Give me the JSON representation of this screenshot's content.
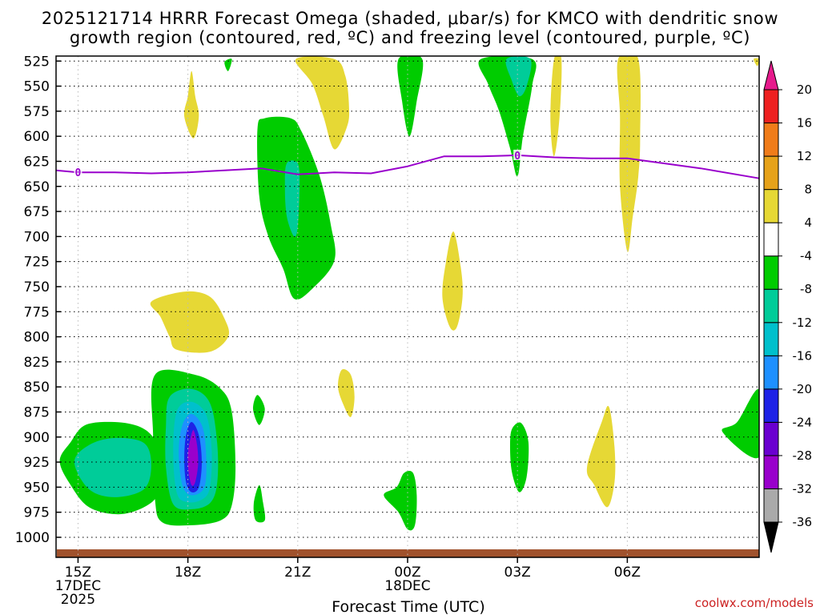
{
  "chart_data": {
    "type": "contour-time-height",
    "title_line1": "2025121714 HRRR Forecast Omega (shaded, μbar/s) for KMCO with dendritic snow",
    "title_line2": "growth region (contoured, red, ºC) and freezing level (contoured, purple, ºC)",
    "xlabel": "Forecast Time (UTC)",
    "credit": "coolwx.com/models",
    "x_range_hours": [
      14.4,
      33.6
    ],
    "y_range_hpa": [
      1020,
      520
    ],
    "y_ticks": [
      525,
      550,
      575,
      600,
      625,
      650,
      675,
      700,
      725,
      750,
      775,
      800,
      825,
      850,
      875,
      900,
      925,
      950,
      975,
      1000
    ],
    "x_ticks": [
      {
        "hour": 15,
        "label": "15Z",
        "sub1": "17DEC",
        "sub2": "2025"
      },
      {
        "hour": 18,
        "label": "18Z",
        "sub1": "",
        "sub2": ""
      },
      {
        "hour": 21,
        "label": "21Z",
        "sub1": "",
        "sub2": ""
      },
      {
        "hour": 24,
        "label": "00Z",
        "sub1": "18DEC",
        "sub2": ""
      },
      {
        "hour": 27,
        "label": "03Z",
        "sub1": "",
        "sub2": ""
      },
      {
        "hour": 30,
        "label": "06Z",
        "sub1": "",
        "sub2": ""
      }
    ],
    "colorbar": {
      "levels": [
        -36,
        -32,
        -28,
        -24,
        -20,
        -16,
        -12,
        -8,
        -4,
        4,
        8,
        12,
        16,
        20
      ],
      "colors": [
        "#aaaaaa",
        "#9900cc",
        "#6a00d0",
        "#1e22e6",
        "#1e90ff",
        "#00c0cc",
        "#00cc99",
        "#00cc00",
        "#ffffff",
        "#e6d835",
        "#e6a21a",
        "#f07c1a",
        "#ee2020",
        "#e6187a"
      ],
      "under_color": "#000000",
      "over_color": "#e61a8c"
    },
    "freezing_level": {
      "label": "0",
      "points": [
        {
          "hour": 14.4,
          "hpa": 634
        },
        {
          "hour": 15,
          "hpa": 636
        },
        {
          "hour": 16,
          "hpa": 636
        },
        {
          "hour": 17,
          "hpa": 637
        },
        {
          "hour": 18,
          "hpa": 636
        },
        {
          "hour": 19,
          "hpa": 634
        },
        {
          "hour": 20,
          "hpa": 632
        },
        {
          "hour": 21,
          "hpa": 638
        },
        {
          "hour": 22,
          "hpa": 636
        },
        {
          "hour": 23,
          "hpa": 637
        },
        {
          "hour": 24,
          "hpa": 630
        },
        {
          "hour": 25,
          "hpa": 620
        },
        {
          "hour": 26,
          "hpa": 620
        },
        {
          "hour": 27,
          "hpa": 619
        },
        {
          "hour": 28,
          "hpa": 621
        },
        {
          "hour": 29,
          "hpa": 622
        },
        {
          "hour": 30,
          "hpa": 622
        },
        {
          "hour": 31,
          "hpa": 627
        },
        {
          "hour": 32,
          "hpa": 632
        },
        {
          "hour": 33.6,
          "hpa": 642
        }
      ],
      "label_hours": [
        15,
        27
      ]
    },
    "omega_regions": [
      {
        "name": "sink-a-15z",
        "color": "#00cc00",
        "points": [
          [
            14.5,
            924
          ],
          [
            14.8,
            905
          ],
          [
            15.2,
            888
          ],
          [
            16,
            885
          ],
          [
            16.7,
            890
          ],
          [
            17.1,
            903
          ],
          [
            17.3,
            927
          ],
          [
            17.2,
            956
          ],
          [
            16.8,
            970
          ],
          [
            16.1,
            977
          ],
          [
            15.3,
            970
          ],
          [
            14.8,
            948
          ]
        ]
      },
      {
        "name": "sink-a-15z-inner",
        "color": "#00cc99",
        "points": [
          [
            14.9,
            925
          ],
          [
            15.3,
            908
          ],
          [
            16,
            901
          ],
          [
            16.8,
            906
          ],
          [
            17.0,
            928
          ],
          [
            16.8,
            952
          ],
          [
            16,
            960
          ],
          [
            15.3,
            952
          ]
        ]
      },
      {
        "name": "sink-b-18z",
        "color": "#00cc00",
        "points": [
          [
            17.1,
            838
          ],
          [
            18.2,
            838
          ],
          [
            18.9,
            852
          ],
          [
            19.2,
            875
          ],
          [
            19.3,
            930
          ],
          [
            19.2,
            968
          ],
          [
            18.9,
            983
          ],
          [
            18.1,
            988
          ],
          [
            17.3,
            985
          ],
          [
            17.1,
            962
          ],
          [
            17.05,
            900
          ]
        ]
      },
      {
        "name": "sink-b-18z-l2",
        "color": "#00cc99",
        "points": [
          [
            17.5,
            860
          ],
          [
            18.1,
            852
          ],
          [
            18.6,
            866
          ],
          [
            18.8,
            906
          ],
          [
            18.8,
            946
          ],
          [
            18.6,
            966
          ],
          [
            18.1,
            972
          ],
          [
            17.6,
            967
          ],
          [
            17.4,
            930
          ],
          [
            17.4,
            890
          ]
        ]
      },
      {
        "name": "sink-b-18z-l3",
        "color": "#00c0cc",
        "points": [
          [
            17.7,
            874
          ],
          [
            18.1,
            865
          ],
          [
            18.5,
            878
          ],
          [
            18.65,
            913
          ],
          [
            18.6,
            950
          ],
          [
            18.4,
            962
          ],
          [
            18.0,
            965
          ],
          [
            17.7,
            956
          ],
          [
            17.6,
            915
          ]
        ]
      },
      {
        "name": "sink-b-18z-l4",
        "color": "#1e90ff",
        "points": [
          [
            17.85,
            888
          ],
          [
            18.1,
            877
          ],
          [
            18.4,
            890
          ],
          [
            18.5,
            920
          ],
          [
            18.45,
            950
          ],
          [
            18.1,
            958
          ],
          [
            17.85,
            948
          ],
          [
            17.75,
            915
          ]
        ]
      },
      {
        "name": "sink-b-18z-l5",
        "color": "#1e22e6",
        "points": [
          [
            17.95,
            898
          ],
          [
            18.1,
            885
          ],
          [
            18.3,
            898
          ],
          [
            18.38,
            925
          ],
          [
            18.3,
            950
          ],
          [
            18.1,
            955
          ],
          [
            17.95,
            945
          ],
          [
            17.9,
            922
          ]
        ]
      },
      {
        "name": "sink-b-18z-core",
        "color": "#9900cc",
        "points": [
          [
            18.05,
            905
          ],
          [
            18.15,
            893
          ],
          [
            18.25,
            908
          ],
          [
            18.28,
            927
          ],
          [
            18.2,
            945
          ],
          [
            18.1,
            948
          ],
          [
            18.02,
            935
          ],
          [
            18.0,
            918
          ]
        ]
      },
      {
        "name": "sink-c-20z",
        "color": "#00cc00",
        "points": [
          [
            19.9,
            593
          ],
          [
            20.1,
            582
          ],
          [
            20.8,
            582
          ],
          [
            21.1,
            595
          ],
          [
            21.6,
            640
          ],
          [
            21.9,
            688
          ],
          [
            22.0,
            724
          ],
          [
            21.4,
            752
          ],
          [
            20.9,
            762
          ],
          [
            20.6,
            732
          ],
          [
            20.2,
            700
          ],
          [
            19.95,
            660
          ]
        ]
      },
      {
        "name": "sink-c-20z-inner",
        "color": "#00cc99",
        "points": [
          [
            20.7,
            627
          ],
          [
            21.0,
            627
          ],
          [
            21.05,
            650
          ],
          [
            21.0,
            690
          ],
          [
            20.9,
            700
          ],
          [
            20.7,
            680
          ],
          [
            20.65,
            650
          ]
        ]
      },
      {
        "name": "sink-d-1930",
        "color": "#00cc00",
        "points": [
          [
            19.0,
            526
          ],
          [
            19.2,
            523
          ],
          [
            19.1,
            535
          ]
        ]
      },
      {
        "name": "sink-e-2005",
        "color": "#00cc00",
        "points": [
          [
            19.9,
            858
          ],
          [
            20.1,
            872
          ],
          [
            19.95,
            888
          ],
          [
            19.78,
            872
          ]
        ]
      },
      {
        "name": "sink-f-2005low",
        "color": "#00cc00",
        "points": [
          [
            19.95,
            948
          ],
          [
            20.05,
            965
          ],
          [
            20.1,
            983
          ],
          [
            19.85,
            983
          ],
          [
            19.8,
            966
          ]
        ]
      },
      {
        "name": "sink-g-00z",
        "color": "#00cc00",
        "points": [
          [
            23.75,
            523
          ],
          [
            24.4,
            523
          ],
          [
            24.25,
            565
          ],
          [
            24.05,
            600
          ],
          [
            23.85,
            565
          ]
        ]
      },
      {
        "name": "sink-h-00zlow",
        "color": "#00cc00",
        "points": [
          [
            23.7,
            950
          ],
          [
            23.9,
            936
          ],
          [
            24.15,
            936
          ],
          [
            24.25,
            958
          ],
          [
            24.2,
            988
          ],
          [
            24.0,
            992
          ],
          [
            23.75,
            975
          ],
          [
            23.35,
            958
          ]
        ]
      },
      {
        "name": "sink-i-03z",
        "color": "#00cc00",
        "points": [
          [
            26.0,
            523
          ],
          [
            27.4,
            523
          ],
          [
            27.4,
            550
          ],
          [
            27.15,
            600
          ],
          [
            27.0,
            640
          ],
          [
            26.8,
            612
          ],
          [
            26.5,
            575
          ],
          [
            26.2,
            548
          ]
        ]
      },
      {
        "name": "sink-i-03z-inner",
        "color": "#00cc99",
        "points": [
          [
            26.7,
            523
          ],
          [
            27.35,
            523
          ],
          [
            27.25,
            550
          ],
          [
            27.05,
            560
          ],
          [
            26.85,
            545
          ]
        ]
      },
      {
        "name": "sink-j-03zlow",
        "color": "#00cc00",
        "points": [
          [
            26.85,
            892
          ],
          [
            27.1,
            886
          ],
          [
            27.3,
            905
          ],
          [
            27.25,
            940
          ],
          [
            27.05,
            955
          ],
          [
            26.85,
            935
          ],
          [
            26.8,
            910
          ]
        ]
      },
      {
        "name": "sink-k-0730",
        "color": "#00cc00",
        "points": [
          [
            33.6,
            853
          ],
          [
            33.6,
            920
          ],
          [
            32.6,
            895
          ],
          [
            33.0,
            885
          ]
        ]
      },
      {
        "name": "rise-a-1730",
        "color": "#e6d835",
        "points": [
          [
            17.0,
            765
          ],
          [
            17.9,
            755
          ],
          [
            18.6,
            760
          ],
          [
            19.0,
            782
          ],
          [
            19.1,
            800
          ],
          [
            18.6,
            815
          ],
          [
            17.7,
            813
          ],
          [
            17.5,
            800
          ],
          [
            17.25,
            780
          ]
        ]
      },
      {
        "name": "rise-b-18z",
        "color": "#e6d835",
        "points": [
          [
            18.0,
            560
          ],
          [
            18.1,
            535
          ],
          [
            18.2,
            560
          ],
          [
            18.3,
            580
          ],
          [
            18.15,
            602
          ],
          [
            17.9,
            580
          ]
        ]
      },
      {
        "name": "rise-c-21z",
        "color": "#e6d835",
        "points": [
          [
            20.95,
            523
          ],
          [
            22.0,
            523
          ],
          [
            22.3,
            540
          ],
          [
            22.4,
            570
          ],
          [
            22.35,
            590
          ],
          [
            22.0,
            613
          ],
          [
            21.7,
            580
          ],
          [
            21.4,
            548
          ]
        ]
      },
      {
        "name": "rise-d-2130",
        "color": "#e6d835",
        "points": [
          [
            22.2,
            833
          ],
          [
            22.45,
            838
          ],
          [
            22.55,
            860
          ],
          [
            22.45,
            880
          ],
          [
            22.25,
            868
          ],
          [
            22.1,
            850
          ]
        ]
      },
      {
        "name": "rise-e-01z",
        "color": "#e6d835",
        "points": [
          [
            25.05,
            725
          ],
          [
            25.25,
            695
          ],
          [
            25.45,
            730
          ],
          [
            25.5,
            760
          ],
          [
            25.35,
            790
          ],
          [
            25.15,
            790
          ],
          [
            24.95,
            760
          ]
        ]
      },
      {
        "name": "rise-f-04z",
        "color": "#e6d835",
        "points": [
          [
            28.0,
            523
          ],
          [
            28.2,
            523
          ],
          [
            28.15,
            580
          ],
          [
            28.0,
            620
          ],
          [
            27.9,
            580
          ]
        ]
      },
      {
        "name": "rise-g-05z",
        "color": "#e6d835",
        "points": [
          [
            29.75,
            523
          ],
          [
            30.3,
            523
          ],
          [
            30.35,
            600
          ],
          [
            30.3,
            640
          ],
          [
            30.15,
            680
          ],
          [
            30.0,
            715
          ],
          [
            29.8,
            650
          ],
          [
            29.8,
            580
          ]
        ]
      },
      {
        "name": "rise-h-05zlow",
        "color": "#e6d835",
        "points": [
          [
            29.3,
            885
          ],
          [
            29.5,
            870
          ],
          [
            29.65,
            910
          ],
          [
            29.65,
            945
          ],
          [
            29.45,
            970
          ],
          [
            29.1,
            948
          ],
          [
            28.9,
            930
          ]
        ]
      },
      {
        "name": "rise-i-0730",
        "color": "#e6d835",
        "points": [
          [
            33.45,
            523
          ],
          [
            33.6,
            523
          ],
          [
            33.55,
            530
          ]
        ]
      }
    ]
  }
}
